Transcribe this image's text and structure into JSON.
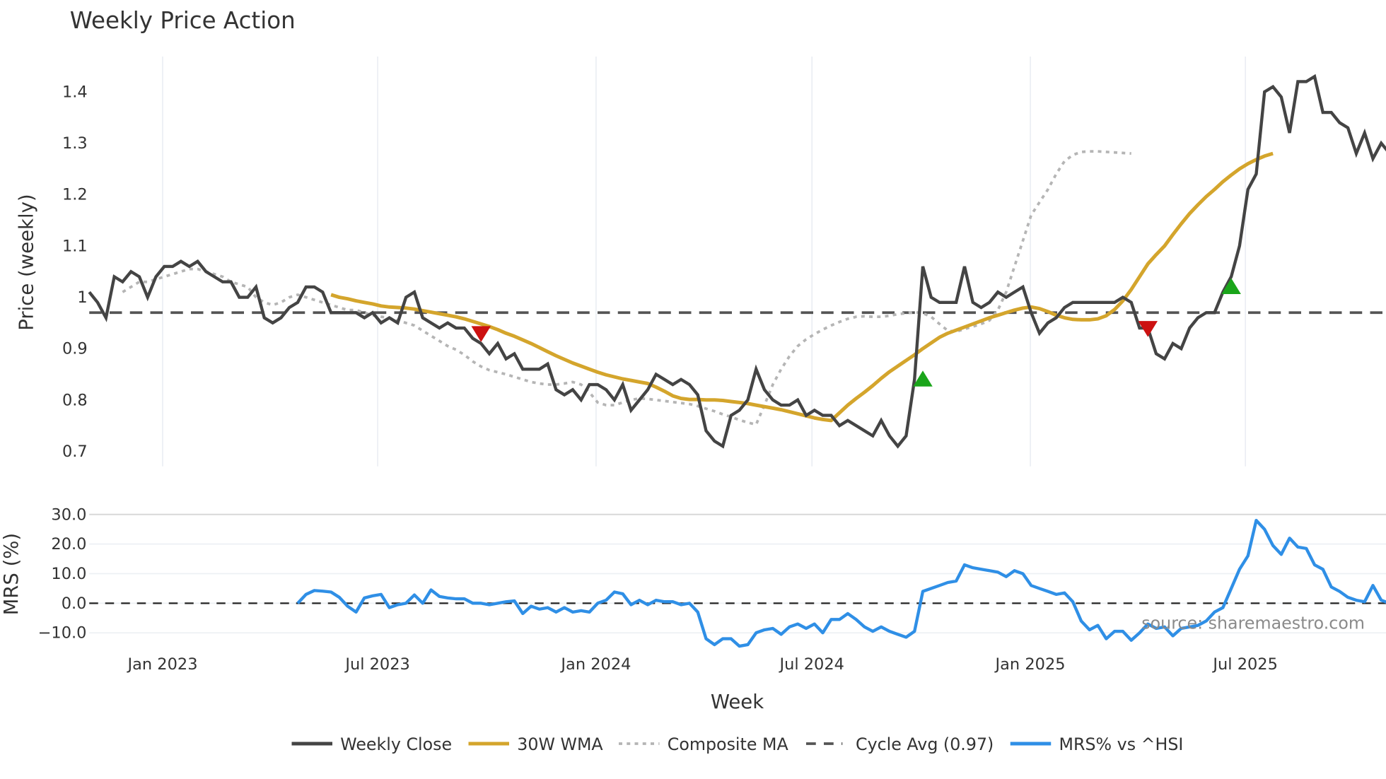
{
  "title": "Weekly Price Action",
  "colors": {
    "close": "#444444",
    "wma": "#d4a52c",
    "composite": "#b5b5b5",
    "cycle": "#555555",
    "mrs": "#2f8fe6",
    "buy": "#1aa51a",
    "sell": "#cc1111",
    "grid": "#e8ecf2"
  },
  "x_axis": {
    "title": "Week",
    "ticks": [
      {
        "label": "Jan 2023",
        "week": 8.8
      },
      {
        "label": "Jul 2023",
        "week": 34.6
      },
      {
        "label": "Jan 2024",
        "week": 60.8
      },
      {
        "label": "Jul 2024",
        "week": 86.7
      },
      {
        "label": "Jan 2025",
        "week": 112.9
      },
      {
        "label": "Jul 2025",
        "week": 138.7
      }
    ]
  },
  "price_axis": {
    "title": "Price (weekly)",
    "ticks": [
      "1.4",
      "1.3",
      "1.2",
      "1.1",
      "1",
      "0.9",
      "0.8",
      "0.7"
    ],
    "tick_values": [
      1.4,
      1.3,
      1.2,
      1.1,
      1.0,
      0.9,
      0.8,
      0.7
    ]
  },
  "mrs_axis": {
    "title": "MRS (%)",
    "ticks": [
      "30.0",
      "20.0",
      "10.0",
      "0.0",
      "−10.0"
    ],
    "tick_values": [
      30,
      20,
      10,
      0,
      -10
    ]
  },
  "watermark": "source: sharemaestro.com",
  "legend": [
    {
      "label": "Weekly Close",
      "key": "close",
      "style": "solid"
    },
    {
      "label": "30W WMA",
      "key": "wma",
      "style": "solid"
    },
    {
      "label": "Composite MA",
      "key": "composite",
      "style": "dotted"
    },
    {
      "label": "Cycle Avg (0.97)",
      "key": "cycle",
      "style": "dashed"
    },
    {
      "label": "MRS% vs ^HSI",
      "key": "mrs",
      "style": "solid"
    }
  ],
  "chart_data": [
    {
      "type": "line",
      "title": "Weekly Price Action",
      "xlabel": "Week",
      "ylabel": "Price (weekly)",
      "ylim": [
        0.68,
        1.46
      ],
      "x_start_week_index": 0,
      "x_ticks": [
        "Jan 2023",
        "Jul 2023",
        "Jan 2024",
        "Jul 2024",
        "Jan 2025",
        "Jul 2025"
      ],
      "reference_lines": [
        {
          "name": "Cycle Avg (0.97)",
          "value": 0.97,
          "style": "dashed"
        }
      ],
      "series": [
        {
          "name": "Weekly Close",
          "start": 0,
          "values": [
            1.01,
            0.99,
            0.96,
            1.04,
            1.03,
            1.05,
            1.04,
            1.0,
            1.04,
            1.06,
            1.06,
            1.07,
            1.06,
            1.07,
            1.05,
            1.04,
            1.03,
            1.03,
            1.0,
            1.0,
            1.02,
            0.96,
            0.95,
            0.96,
            0.98,
            0.99,
            1.02,
            1.02,
            1.01,
            0.97,
            0.97,
            0.97,
            0.97,
            0.96,
            0.97,
            0.95,
            0.96,
            0.95,
            1.0,
            1.01,
            0.96,
            0.95,
            0.94,
            0.95,
            0.94,
            0.94,
            0.92,
            0.91,
            0.89,
            0.91,
            0.88,
            0.89,
            0.86,
            0.86,
            0.86,
            0.87,
            0.82,
            0.81,
            0.82,
            0.8,
            0.83,
            0.83,
            0.82,
            0.8,
            0.83,
            0.78,
            0.8,
            0.82,
            0.85,
            0.84,
            0.83,
            0.84,
            0.83,
            0.81,
            0.74,
            0.72,
            0.71,
            0.77,
            0.78,
            0.8,
            0.86,
            0.82,
            0.8,
            0.79,
            0.79,
            0.8,
            0.77,
            0.78,
            0.77,
            0.77,
            0.75,
            0.76,
            0.75,
            0.74,
            0.73,
            0.76,
            0.73,
            0.71,
            0.73,
            0.84,
            1.06,
            1.0,
            0.99,
            0.99,
            0.99,
            1.06,
            0.99,
            0.98,
            0.99,
            1.01,
            1.0,
            1.01,
            1.02,
            0.97,
            0.93,
            0.95,
            0.96,
            0.98,
            0.99,
            0.99,
            0.99,
            0.99,
            0.99,
            0.99,
            1.0,
            0.99,
            0.94,
            0.94,
            0.89,
            0.88,
            0.91,
            0.9,
            0.94,
            0.96,
            0.97,
            0.97,
            1.01,
            1.04,
            1.1,
            1.21,
            1.24,
            1.4,
            1.41,
            1.39,
            1.32,
            1.42,
            1.42,
            1.43,
            1.36,
            1.36,
            1.34,
            1.33,
            1.28,
            1.32,
            1.27,
            1.3,
            1.28
          ]
        },
        {
          "name": "30W WMA",
          "start": 29,
          "values": [
            1.005,
            1.0,
            0.997,
            0.993,
            0.99,
            0.987,
            0.983,
            0.981,
            0.98,
            0.979,
            0.977,
            0.974,
            0.971,
            0.968,
            0.965,
            0.962,
            0.958,
            0.953,
            0.948,
            0.943,
            0.937,
            0.93,
            0.924,
            0.917,
            0.91,
            0.902,
            0.894,
            0.886,
            0.879,
            0.872,
            0.866,
            0.86,
            0.854,
            0.849,
            0.845,
            0.841,
            0.838,
            0.835,
            0.832,
            0.825,
            0.817,
            0.808,
            0.803,
            0.801,
            0.801,
            0.8,
            0.8,
            0.799,
            0.797,
            0.795,
            0.793,
            0.79,
            0.787,
            0.784,
            0.781,
            0.777,
            0.773,
            0.769,
            0.765,
            0.762,
            0.76,
            0.775,
            0.79,
            0.803,
            0.815,
            0.828,
            0.842,
            0.855,
            0.866,
            0.877,
            0.888,
            0.9,
            0.911,
            0.922,
            0.93,
            0.936,
            0.942,
            0.948,
            0.954,
            0.96,
            0.965,
            0.97,
            0.975,
            0.979,
            0.981,
            0.978,
            0.972,
            0.965,
            0.96,
            0.957,
            0.956,
            0.956,
            0.958,
            0.964,
            0.976,
            0.993,
            1.015,
            1.04,
            1.065,
            1.083,
            1.1,
            1.122,
            1.143,
            1.163,
            1.18,
            1.196,
            1.21,
            1.225,
            1.238,
            1.25,
            1.26,
            1.268,
            1.275,
            1.28
          ]
        },
        {
          "name": "Composite MA",
          "start": 4,
          "values": [
            1.01,
            1.02,
            1.03,
            1.03,
            1.035,
            1.04,
            1.045,
            1.05,
            1.055,
            1.055,
            1.05,
            1.045,
            1.04,
            1.03,
            1.025,
            1.02,
            1.0,
            0.99,
            0.985,
            0.99,
            1.0,
            1.005,
            1.0,
            0.995,
            0.99,
            0.985,
            0.98,
            0.975,
            0.975,
            0.97,
            0.965,
            0.962,
            0.96,
            0.955,
            0.95,
            0.945,
            0.935,
            0.925,
            0.915,
            0.905,
            0.898,
            0.888,
            0.875,
            0.865,
            0.858,
            0.854,
            0.85,
            0.845,
            0.84,
            0.835,
            0.832,
            0.83,
            0.83,
            0.832,
            0.835,
            0.83,
            0.815,
            0.795,
            0.79,
            0.79,
            0.795,
            0.8,
            0.803,
            0.802,
            0.8,
            0.798,
            0.796,
            0.794,
            0.792,
            0.788,
            0.783,
            0.778,
            0.772,
            0.767,
            0.761,
            0.756,
            0.752,
            0.79,
            0.83,
            0.86,
            0.885,
            0.905,
            0.918,
            0.928,
            0.937,
            0.945,
            0.952,
            0.958,
            0.962,
            0.963,
            0.962,
            0.962,
            0.964,
            0.967,
            0.969,
            0.971,
            0.969,
            0.962,
            0.948,
            0.935,
            0.933,
            0.938,
            0.943,
            0.948,
            0.955,
            0.975,
            1.01,
            1.06,
            1.11,
            1.16,
            1.185,
            1.21,
            1.24,
            1.265,
            1.277,
            1.283,
            1.284,
            1.284,
            1.283,
            1.282,
            1.281,
            1.28
          ]
        }
      ],
      "markers": [
        {
          "type": "sell",
          "week": 47,
          "value": 0.93
        },
        {
          "type": "buy",
          "week": 100,
          "value": 0.84
        },
        {
          "type": "sell",
          "week": 127,
          "value": 0.94
        },
        {
          "type": "buy",
          "week": 137,
          "value": 1.02
        }
      ]
    },
    {
      "type": "line",
      "title": "",
      "xlabel": "Week",
      "ylabel": "MRS (%)",
      "ylim": [
        -15,
        31
      ],
      "reference_lines": [
        {
          "name": "zero",
          "value": 0,
          "style": "dashed"
        }
      ],
      "series": [
        {
          "name": "MRS% vs ^HSI",
          "start": 25,
          "values": [
            0,
            3,
            4.3,
            4.1,
            3.8,
            2,
            -1,
            -3,
            1.8,
            2.5,
            3,
            -1.5,
            -0.5,
            0,
            2.8,
            0,
            4.5,
            2.3,
            1.8,
            1.5,
            1.5,
            0,
            0,
            -0.5,
            0,
            0.5,
            0.8,
            -3.5,
            -1,
            -2,
            -1.5,
            -3,
            -1.5,
            -3,
            -2.5,
            -3,
            0,
            1,
            3.8,
            3.2,
            -0.5,
            1,
            -0.5,
            1,
            0.5,
            0.5,
            -0.5,
            0,
            -3,
            -12,
            -14,
            -12,
            -12,
            -14.5,
            -14,
            -10,
            -9,
            -8.5,
            -10.5,
            -8,
            -7,
            -8.5,
            -7,
            -10,
            -5.5,
            -5.5,
            -3.5,
            -5.5,
            -8,
            -9.5,
            -8,
            -9.5,
            -10.5,
            -11.5,
            -9.5,
            4,
            5,
            6,
            7,
            7.5,
            13,
            12,
            11.5,
            11,
            10.5,
            9,
            11,
            10,
            6,
            5,
            4,
            3,
            3.5,
            0.5,
            -6,
            -9,
            -7.5,
            -12,
            -9.5,
            -9.5,
            -12.5,
            -10,
            -7,
            -8.5,
            -8,
            -11,
            -8.5,
            -8,
            -7.5,
            -6,
            -3,
            -1.5,
            5,
            11.5,
            16,
            28,
            25,
            19.5,
            16.5,
            22,
            19,
            18.5,
            13,
            11.5,
            5.5,
            4,
            2,
            1,
            0.5,
            6,
            1,
            0
          ]
        }
      ]
    }
  ]
}
